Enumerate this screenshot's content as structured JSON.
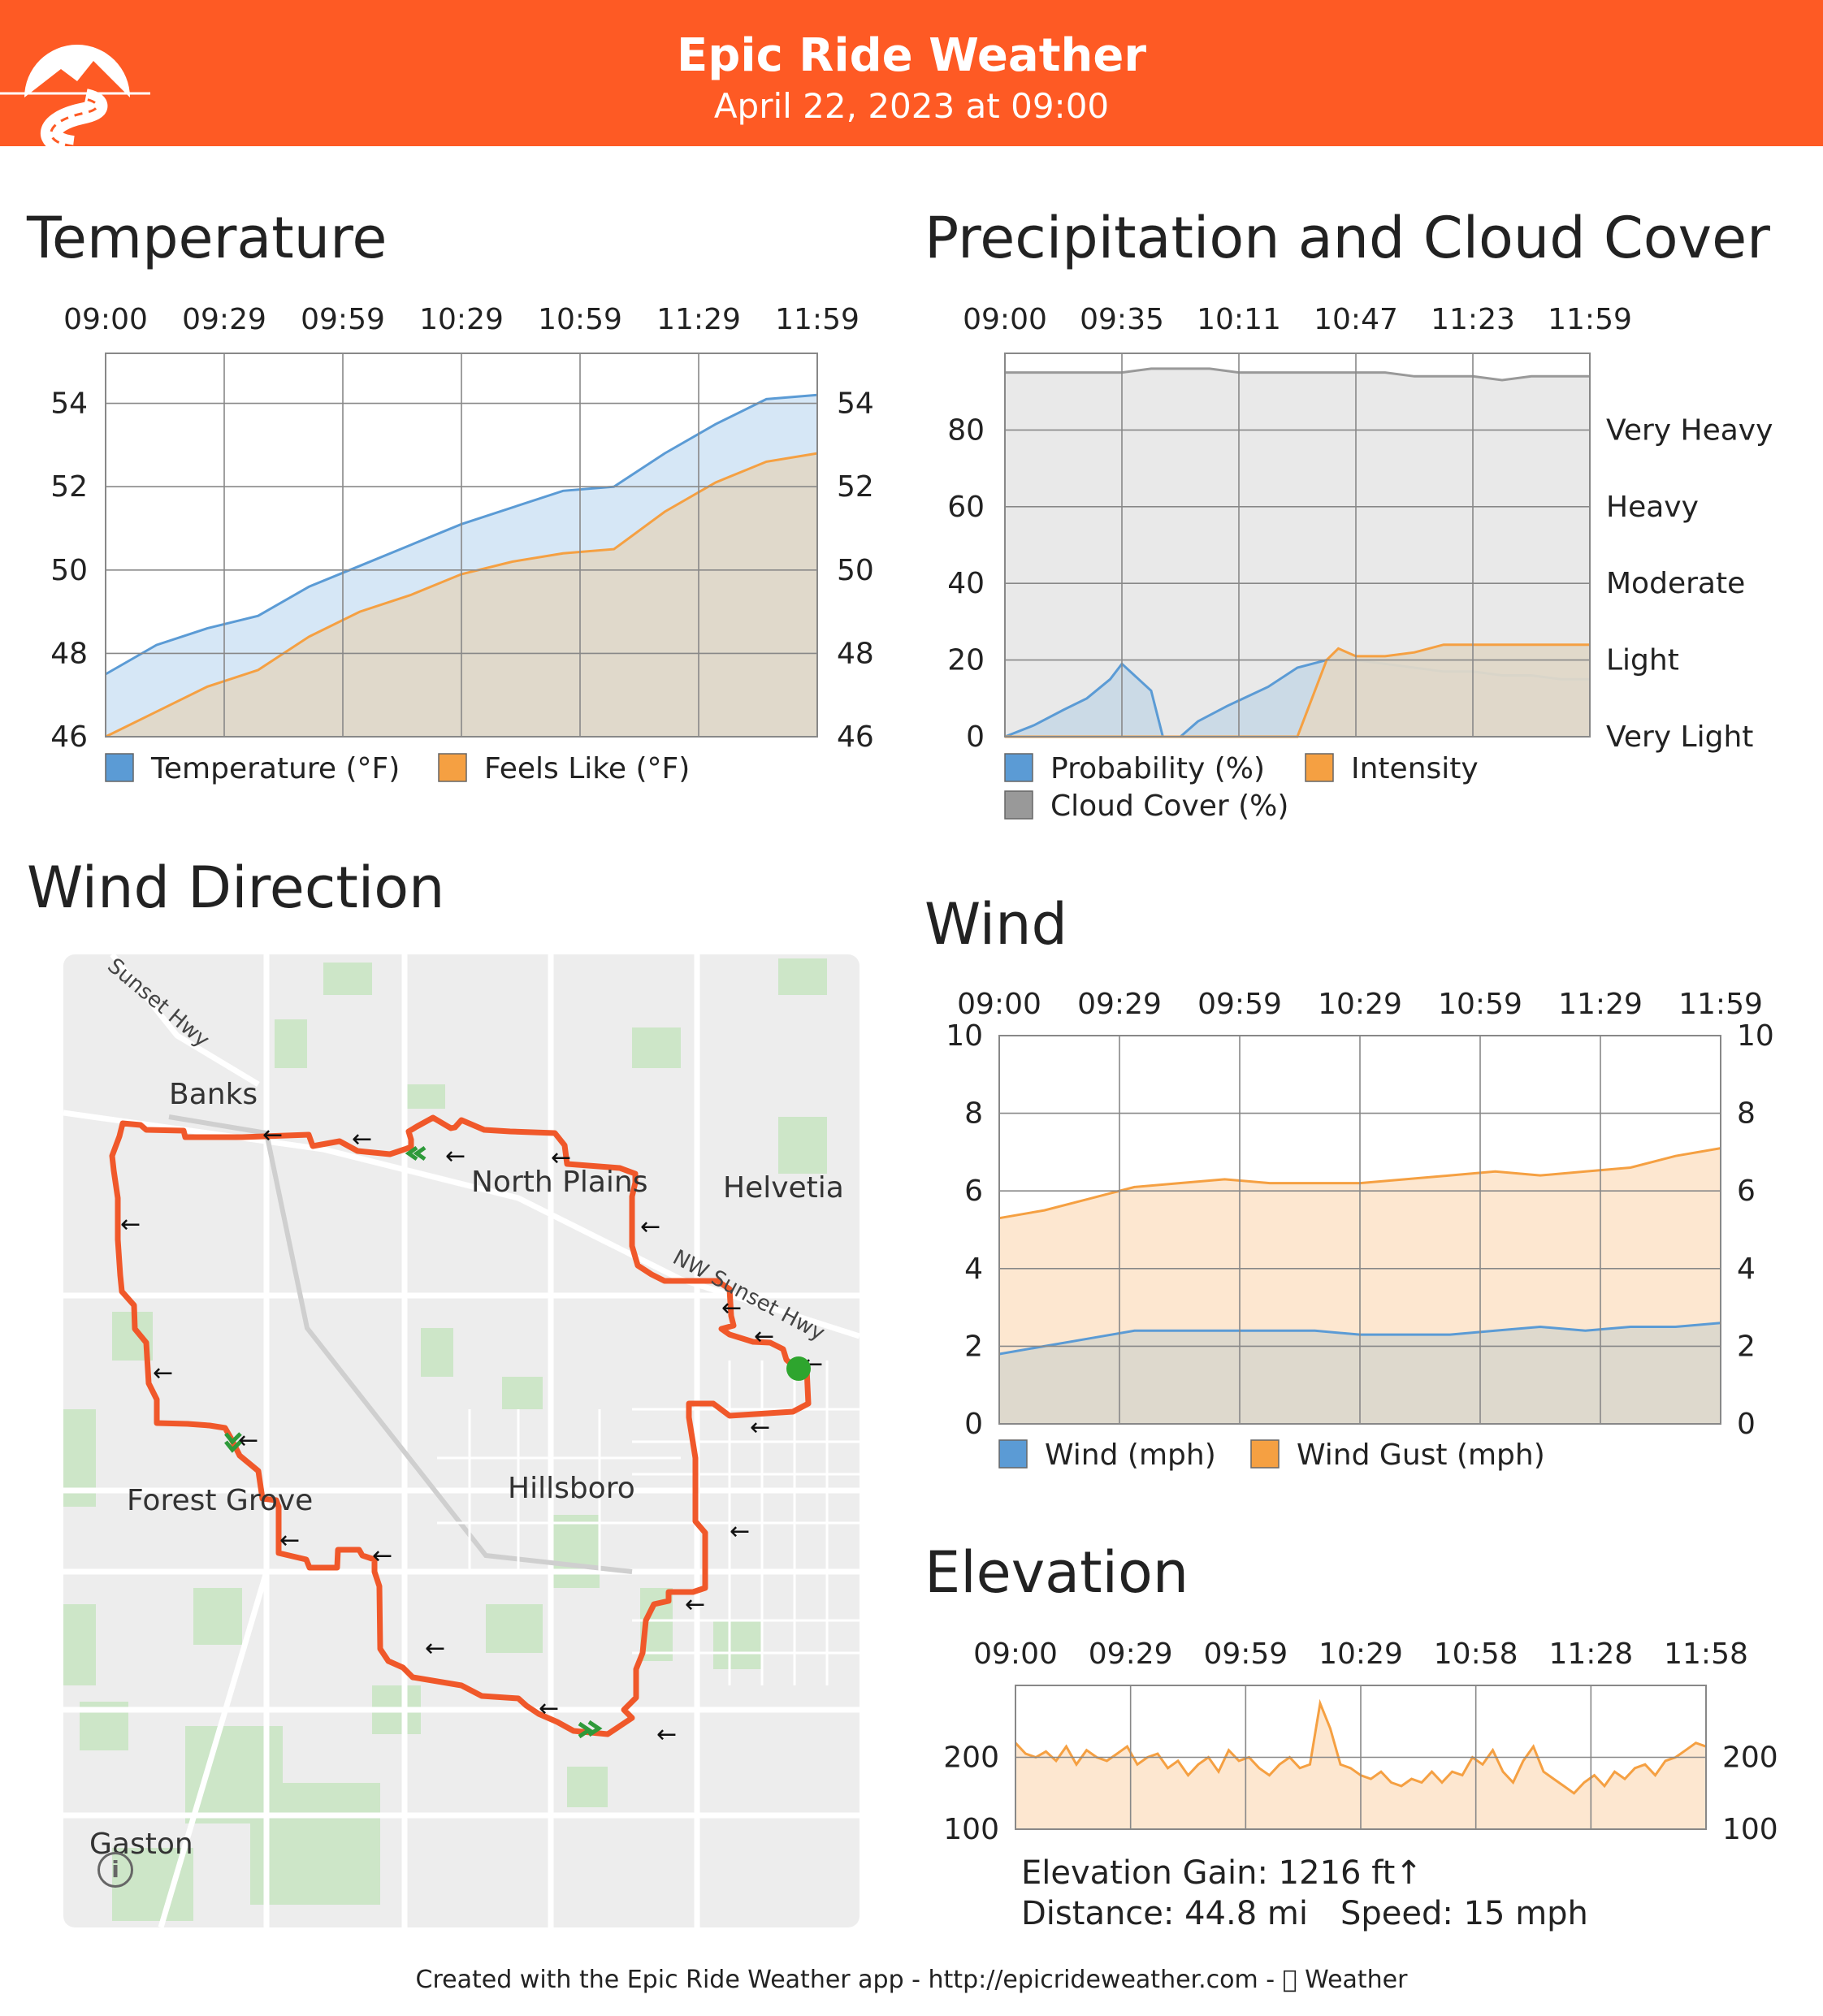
{
  "header": {
    "title": "Epic Ride Weather",
    "subtitle": "April 22, 2023 at 09:00",
    "background_color": "#fe5a24",
    "logo_icon": "mountain-road-logo"
  },
  "sections": {
    "temperature": "Temperature",
    "precipitation": "Precipitation and Cloud Cover",
    "wind_direction": "Wind Direction",
    "wind": "Wind",
    "elevation": "Elevation"
  },
  "chart_data": [
    {
      "id": "temperature",
      "type": "area",
      "x_labels": [
        "09:00",
        "09:29",
        "09:59",
        "10:29",
        "10:59",
        "11:29",
        "11:59"
      ],
      "y_ticks_left": [
        "54",
        "52",
        "50",
        "48",
        "46"
      ],
      "y_ticks_right": [
        "54",
        "52",
        "50",
        "48",
        "46"
      ],
      "ylim": [
        46,
        55.2
      ],
      "grid": true,
      "legend_position": "bottom-left",
      "series": [
        {
          "name": "Temperature (°F)",
          "color": "#5b9bd5",
          "fill": "#d4e6f6",
          "values": [
            47.5,
            48.2,
            48.6,
            48.9,
            49.6,
            50.1,
            50.6,
            51.1,
            51.5,
            51.9,
            52.0,
            52.8,
            53.5,
            54.1,
            54.2
          ]
        },
        {
          "name": "Feels Like (°F)",
          "color": "#f5a042",
          "fill": "#e0d8c8",
          "values": [
            46.0,
            46.6,
            47.2,
            47.6,
            48.4,
            49.0,
            49.4,
            49.9,
            50.2,
            50.4,
            50.5,
            51.4,
            52.1,
            52.6,
            52.8
          ]
        }
      ]
    },
    {
      "id": "precipitation",
      "type": "area",
      "x_labels": [
        "09:00",
        "09:35",
        "10:11",
        "10:47",
        "11:23",
        "11:59"
      ],
      "y_ticks_left": [
        "80",
        "60",
        "40",
        "20",
        "0"
      ],
      "y_ticks_right": [
        "Very Heavy",
        "Heavy",
        "Moderate",
        "Light",
        "Very Light"
      ],
      "ylim": [
        0,
        100
      ],
      "grid": true,
      "legend_position": "bottom-left",
      "series": [
        {
          "name": "Probability (%)",
          "color": "#5b9bd5",
          "fill": "#c9d9e6",
          "x": [
            0,
            5,
            10,
            14,
            18,
            20,
            25,
            27,
            30,
            33,
            38,
            45,
            50,
            55,
            60,
            65,
            70,
            75,
            80,
            85,
            90,
            95,
            100
          ],
          "values": [
            0,
            3,
            7,
            10,
            15,
            19,
            12,
            0,
            0,
            4,
            8,
            13,
            18,
            20,
            20,
            19,
            18,
            17,
            17,
            16,
            16,
            15,
            15
          ]
        },
        {
          "name": "Intensity",
          "color": "#f5a042",
          "fill": "#e0d8c8",
          "x": [
            0,
            50,
            52,
            55,
            57,
            60,
            65,
            70,
            75,
            80,
            85,
            90,
            95,
            100
          ],
          "values": [
            0,
            0,
            8,
            20,
            23,
            21,
            21,
            22,
            24,
            24,
            24,
            24,
            24,
            24
          ]
        },
        {
          "name": "Cloud Cover (%)",
          "color": "#999999",
          "fill": "#e8e8e8",
          "x": [
            0,
            5,
            10,
            15,
            20,
            25,
            30,
            35,
            40,
            45,
            50,
            55,
            60,
            65,
            70,
            75,
            80,
            85,
            90,
            95,
            100
          ],
          "values": [
            95,
            95,
            95,
            95,
            95,
            96,
            96,
            96,
            95,
            95,
            95,
            95,
            95,
            95,
            94,
            94,
            94,
            93,
            94,
            94,
            94
          ]
        }
      ]
    },
    {
      "id": "wind",
      "type": "area",
      "x_labels": [
        "09:00",
        "09:29",
        "09:59",
        "10:29",
        "10:59",
        "11:29",
        "11:59"
      ],
      "y_ticks_left": [
        "10",
        "8",
        "6",
        "4",
        "2",
        "0"
      ],
      "y_ticks_right": [
        "10",
        "8",
        "6",
        "4",
        "2",
        "0"
      ],
      "ylim": [
        0,
        10
      ],
      "grid": true,
      "legend_position": "bottom-left",
      "series": [
        {
          "name": "Wind (mph)",
          "color": "#5b9bd5",
          "fill": "#dcd8cc",
          "values": [
            1.8,
            2.0,
            2.2,
            2.4,
            2.4,
            2.4,
            2.4,
            2.4,
            2.3,
            2.3,
            2.3,
            2.4,
            2.5,
            2.4,
            2.5,
            2.5,
            2.6
          ]
        },
        {
          "name": "Wind Gust (mph)",
          "color": "#f5a042",
          "fill": "#fde6cd",
          "values": [
            5.3,
            5.5,
            5.8,
            6.1,
            6.2,
            6.3,
            6.2,
            6.2,
            6.2,
            6.3,
            6.4,
            6.5,
            6.4,
            6.5,
            6.6,
            6.9,
            7.1
          ]
        }
      ]
    },
    {
      "id": "elevation",
      "type": "area",
      "x_labels": [
        "09:00",
        "09:29",
        "09:59",
        "10:29",
        "10:58",
        "11:28",
        "11:58"
      ],
      "y_ticks_left": [
        "200",
        "100"
      ],
      "y_ticks_right": [
        "200",
        "100"
      ],
      "ylim": [
        100,
        300
      ],
      "grid": true,
      "series": [
        {
          "name": "Elevation",
          "color": "#f5a042",
          "fill": "#fde6cd",
          "values": [
            220,
            205,
            200,
            208,
            195,
            215,
            190,
            210,
            200,
            195,
            205,
            215,
            190,
            200,
            205,
            185,
            195,
            175,
            190,
            200,
            180,
            210,
            195,
            200,
            185,
            175,
            190,
            200,
            185,
            190,
            275,
            240,
            190,
            185,
            175,
            170,
            180,
            165,
            160,
            170,
            165,
            180,
            165,
            180,
            175,
            200,
            190,
            210,
            180,
            165,
            195,
            215,
            180,
            170,
            160,
            150,
            165,
            175,
            160,
            180,
            170,
            185,
            190,
            175,
            195,
            200,
            210,
            220,
            215
          ]
        }
      ]
    }
  ],
  "wind_map": {
    "places": [
      "Banks",
      "North Plains",
      "Helvetia",
      "Forest Grove",
      "Hillsboro",
      "Gaston"
    ],
    "roads": [
      "Sunset Hwy",
      "NW Sunset Hwy"
    ],
    "route_color": "#f0582a",
    "start_marker_color": "#2ea52e",
    "info_icon": "info-icon",
    "wind_arrow_icon": "left-arrow-icon",
    "chevron_icon": "double-chevron-icon"
  },
  "elevation_stats": {
    "gain": "Elevation Gain: 1216 ft↑",
    "distance": "Distance: 44.8 mi",
    "speed": "Speed: 15 mph"
  },
  "footer": "Created with the Epic Ride Weather app - http://epicrideweather.com -  Weather"
}
